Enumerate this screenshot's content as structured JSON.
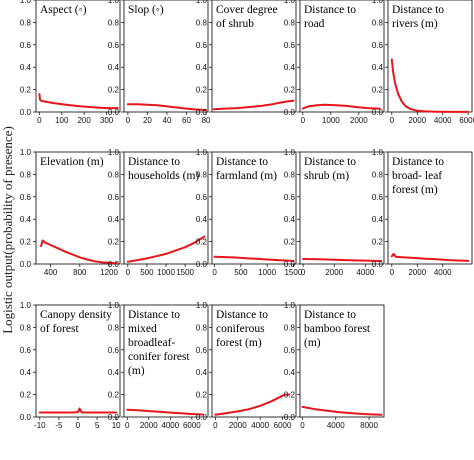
{
  "figure": {
    "ylabel": "Logistic output(probability of presence)",
    "curve_color": "#e8151b",
    "frame_color": "#000000"
  },
  "chart_data": [
    {
      "type": "line",
      "title": "Aspect (◦)",
      "xlim": [
        -15,
        360
      ],
      "ylim": [
        0,
        1
      ],
      "xticks": [
        0,
        100,
        200,
        300
      ],
      "yticks": [
        0.0,
        0.2,
        0.4,
        0.6,
        0.8,
        1.0
      ],
      "x": [
        0,
        3,
        8,
        20,
        60,
        120,
        180,
        240,
        300,
        350
      ],
      "y": [
        0.16,
        0.11,
        0.1,
        0.095,
        0.08,
        0.065,
        0.052,
        0.042,
        0.035,
        0.035
      ]
    },
    {
      "type": "line",
      "title": "Slop (◦)",
      "xlim": [
        -4,
        82
      ],
      "ylim": [
        0,
        1
      ],
      "xticks": [
        0,
        20,
        40,
        60,
        80
      ],
      "yticks": [
        0.0,
        0.2,
        0.4,
        0.6,
        0.8,
        1.0
      ],
      "x": [
        0,
        10,
        20,
        30,
        40,
        50,
        60,
        70,
        80
      ],
      "y": [
        0.07,
        0.07,
        0.065,
        0.06,
        0.05,
        0.04,
        0.03,
        0.022,
        0.018
      ]
    },
    {
      "type": "line",
      "title": "Cover degree of shrub",
      "xlim": [
        0,
        1
      ],
      "ylim": [
        0,
        1
      ],
      "xticks": [],
      "yticks": [
        0.0,
        0.2,
        0.4,
        0.6,
        0.8,
        1.0
      ],
      "x": [
        0.02,
        0.15,
        0.3,
        0.45,
        0.6,
        0.72,
        0.82,
        0.9,
        0.97
      ],
      "y": [
        0.025,
        0.03,
        0.035,
        0.045,
        0.055,
        0.07,
        0.085,
        0.095,
        0.1
      ]
    },
    {
      "type": "line",
      "title": "Distance to road",
      "xlim": [
        -100,
        2900
      ],
      "ylim": [
        0,
        1
      ],
      "xticks": [
        0,
        1000,
        2000
      ],
      "yticks": [
        0.0,
        0.2,
        0.4,
        0.6,
        0.8,
        1.0
      ],
      "x": [
        0,
        200,
        500,
        800,
        1100,
        1500,
        1900,
        2300,
        2750
      ],
      "y": [
        0.03,
        0.05,
        0.06,
        0.065,
        0.062,
        0.055,
        0.045,
        0.035,
        0.03
      ]
    },
    {
      "type": "line",
      "title": "Distance to rivers (m)",
      "xlim": [
        -300,
        6300
      ],
      "ylim": [
        0,
        1
      ],
      "xticks": [
        0,
        2000,
        4000,
        6000
      ],
      "yticks": [
        0.0,
        0.2,
        0.4,
        0.6,
        0.8,
        1.0
      ],
      "x": [
        0,
        100,
        250,
        500,
        800,
        1100,
        1500,
        2000,
        2500,
        3500,
        5000,
        6000
      ],
      "y": [
        0.47,
        0.36,
        0.26,
        0.16,
        0.09,
        0.05,
        0.025,
        0.012,
        0.006,
        0.003,
        0.001,
        0.001
      ]
    },
    {
      "type": "line",
      "title": "Elevation (m)",
      "xlim": [
        200,
        1350
      ],
      "ylim": [
        0,
        1
      ],
      "xticks": [
        400,
        800,
        1200
      ],
      "yticks": [
        0.0,
        0.2,
        0.4,
        0.6,
        0.8,
        1.0
      ],
      "x": [
        270,
        290,
        330,
        400,
        500,
        600,
        700,
        800,
        900,
        1000,
        1100,
        1200,
        1300
      ],
      "y": [
        0.16,
        0.21,
        0.19,
        0.17,
        0.14,
        0.11,
        0.085,
        0.06,
        0.04,
        0.025,
        0.015,
        0.01,
        0.008
      ]
    },
    {
      "type": "line",
      "title": "Distance to households (m)",
      "xlim": [
        -100,
        2100
      ],
      "ylim": [
        0,
        1
      ],
      "xticks": [
        0,
        500,
        1000,
        1500
      ],
      "yticks": [
        0.0,
        0.2,
        0.4,
        0.6,
        0.8,
        1.0
      ],
      "x": [
        0,
        250,
        500,
        750,
        1000,
        1250,
        1500,
        1750,
        2000
      ],
      "y": [
        0.02,
        0.035,
        0.05,
        0.07,
        0.09,
        0.12,
        0.15,
        0.19,
        0.245
      ]
    },
    {
      "type": "line",
      "title": "Distance to farmland (m)",
      "xlim": [
        -50,
        1550
      ],
      "ylim": [
        0,
        1
      ],
      "xticks": [
        0,
        500,
        1000,
        1500
      ],
      "yticks": [
        0.0,
        0.2,
        0.4,
        0.6,
        0.8,
        1.0
      ],
      "x": [
        0,
        200,
        400,
        600,
        800,
        1000,
        1200,
        1400,
        1500
      ],
      "y": [
        0.065,
        0.062,
        0.058,
        0.052,
        0.046,
        0.04,
        0.035,
        0.03,
        0.028
      ]
    },
    {
      "type": "line",
      "title": "Distance to shrub (m)",
      "xlim": [
        -200,
        5200
      ],
      "ylim": [
        0,
        1
      ],
      "xticks": [
        0,
        2000,
        4000
      ],
      "yticks": [
        0.0,
        0.2,
        0.4,
        0.6,
        0.8,
        1.0
      ],
      "x": [
        0,
        1000,
        2000,
        3000,
        4000,
        5000
      ],
      "y": [
        0.045,
        0.042,
        0.038,
        0.034,
        0.03,
        0.027
      ]
    },
    {
      "type": "line",
      "title": "Distance to broad- leaf forest (m)",
      "xlim": [
        -300,
        6300
      ],
      "ylim": [
        0,
        1
      ],
      "xticks": [
        0,
        2000,
        4000
      ],
      "yticks": [
        0.0,
        0.2,
        0.4,
        0.6,
        0.8,
        1.0
      ],
      "x": [
        0,
        150,
        300,
        800,
        1500,
        2500,
        3500,
        4500,
        5500,
        6000
      ],
      "y": [
        0.07,
        0.09,
        0.065,
        0.06,
        0.055,
        0.048,
        0.042,
        0.035,
        0.03,
        0.028
      ]
    },
    {
      "type": "line",
      "title": "Canopy density of forest",
      "xlim": [
        -11,
        11
      ],
      "ylim": [
        0,
        1
      ],
      "xticks": [
        -10,
        -5,
        0,
        5,
        10
      ],
      "yticks": [
        0.0,
        0.2,
        0.4,
        0.6,
        0.8,
        1.0
      ],
      "x": [
        -10,
        -5,
        -1,
        0,
        0.4,
        1,
        5,
        10
      ],
      "y": [
        0.04,
        0.04,
        0.04,
        0.045,
        0.075,
        0.04,
        0.04,
        0.04
      ]
    },
    {
      "type": "line",
      "title": "Distance to mixed broadleaf- conifer forest (m)",
      "xlim": [
        -300,
        7500
      ],
      "ylim": [
        0,
        1
      ],
      "xticks": [
        0,
        2000,
        4000,
        6000
      ],
      "yticks": [
        0.0,
        0.2,
        0.4,
        0.6,
        0.8,
        1.0
      ],
      "x": [
        0,
        1000,
        2000,
        3000,
        4000,
        5000,
        6000,
        7000
      ],
      "y": [
        0.065,
        0.06,
        0.053,
        0.046,
        0.039,
        0.033,
        0.027,
        0.022
      ]
    },
    {
      "type": "line",
      "title": "Distance to coniferous forest (m)",
      "xlim": [
        -300,
        7200
      ],
      "ylim": [
        0,
        1
      ],
      "xticks": [
        0,
        2000,
        4000,
        6000
      ],
      "yticks": [
        0.0,
        0.2,
        0.4,
        0.6,
        0.8,
        1.0
      ],
      "x": [
        0,
        1000,
        2000,
        3000,
        4000,
        5000,
        5800,
        6200,
        6600
      ],
      "y": [
        0.02,
        0.035,
        0.05,
        0.07,
        0.1,
        0.14,
        0.18,
        0.2,
        0.2
      ]
    },
    {
      "type": "line",
      "title": "Distance to bamboo forest (m)",
      "xlim": [
        -300,
        9800
      ],
      "ylim": [
        0,
        1
      ],
      "xticks": [
        0,
        4000,
        8000
      ],
      "yticks": [
        0.0,
        0.2,
        0.4,
        0.6,
        0.8,
        1.0
      ],
      "x": [
        0,
        1500,
        3000,
        4500,
        6000,
        7500,
        9000,
        9500
      ],
      "y": [
        0.09,
        0.07,
        0.055,
        0.043,
        0.033,
        0.026,
        0.021,
        0.02
      ]
    }
  ]
}
